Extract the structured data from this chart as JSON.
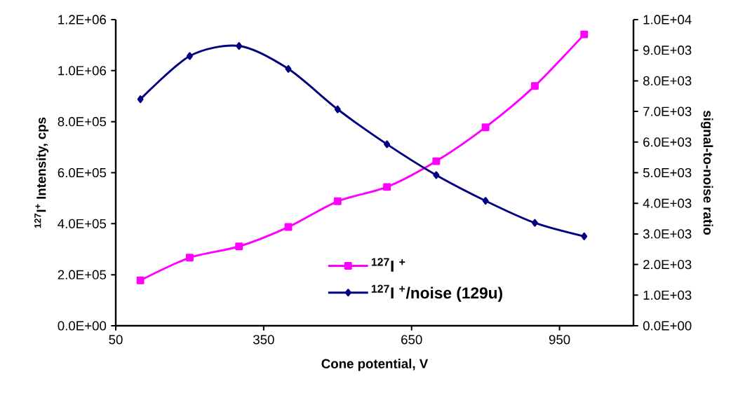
{
  "chart_data": {
    "type": "line",
    "xlabel": "Cone potential, V",
    "ylabel": "$^{127}$I$^{+}$ Intensity, cps",
    "y2label": "signal-to-noise ratio",
    "x": [
      100,
      200,
      300,
      400,
      500,
      600,
      700,
      800,
      900,
      1000
    ],
    "series": [
      {
        "name": "$^{127}$I $^{+}$",
        "color": "#ff00ff",
        "marker": "square",
        "values": [
          178000,
          267000,
          311000,
          387000,
          488000,
          544000,
          645000,
          778000,
          940000,
          1142000
        ]
      },
      {
        "name": "$^{127}$I $^{+}$/noise (129u)",
        "color": "#000080",
        "marker": "diamond",
        "axis": "y2",
        "values": [
          7400,
          8810,
          9140,
          8390,
          7070,
          5930,
          4920,
          4080,
          3360,
          2920
        ]
      }
    ],
    "xlim": [
      50,
      1100
    ],
    "xticks": [
      50,
      350,
      650,
      950
    ],
    "ylim": [
      0,
      1200000
    ],
    "yticks": [
      {
        "value": 0,
        "label": "0.0E+00"
      },
      {
        "value": 200000,
        "label": "2.0E+05"
      },
      {
        "value": 400000,
        "label": "4.0E+05"
      },
      {
        "value": 600000,
        "label": "6.0E+05"
      },
      {
        "value": 800000,
        "label": "8.0E+05"
      },
      {
        "value": 1000000,
        "label": "1.0E+06"
      },
      {
        "value": 1200000,
        "label": "1.2E+06"
      }
    ],
    "y2lim": [
      0,
      10000
    ],
    "y2ticks": [
      {
        "value": 0,
        "label": "0.0E+00"
      },
      {
        "value": 1000,
        "label": "1.0E+03"
      },
      {
        "value": 2000,
        "label": "2.0E+03"
      },
      {
        "value": 3000,
        "label": "3.0E+03"
      },
      {
        "value": 4000,
        "label": "4.0E+03"
      },
      {
        "value": 5000,
        "label": "5.0E+03"
      },
      {
        "value": 6000,
        "label": "6.0E+03"
      },
      {
        "value": 7000,
        "label": "7.0E+03"
      },
      {
        "value": 8000,
        "label": "8.0E+03"
      },
      {
        "value": 9000,
        "label": "9.0E+03"
      },
      {
        "value": 10000,
        "label": "1.0E+04"
      }
    ],
    "legend": "bottom",
    "grid": false,
    "line_style": "solid"
  }
}
